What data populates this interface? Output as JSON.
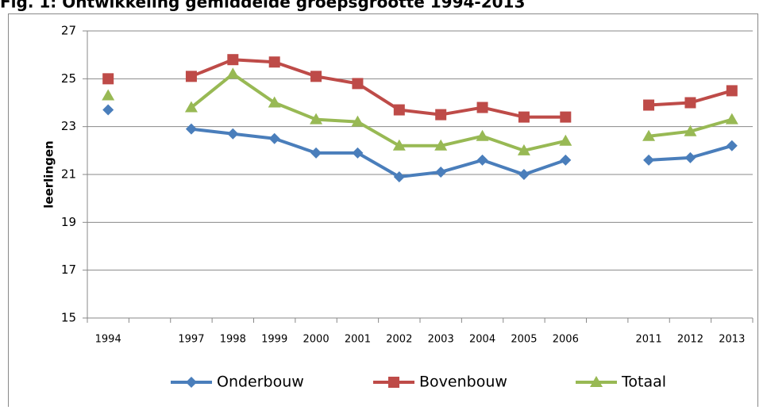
{
  "chart_data": {
    "type": "line",
    "title": "Fig. 1: Ontwikkeling gemiddelde groepsgrootte 1994-2013",
    "y_label": "leerlingen",
    "categories": [
      "1994",
      null,
      "1997",
      "1998",
      "1999",
      "2000",
      "2001",
      "2002",
      "2003",
      "2004",
      "2005",
      "2006",
      null,
      "2011",
      "2012",
      "2013"
    ],
    "series": [
      {
        "name": "Onderbouw",
        "color": "#4a7ebb",
        "marker": "diamond",
        "values": [
          23.7,
          null,
          22.9,
          22.7,
          22.5,
          21.9,
          21.9,
          20.9,
          21.1,
          21.6,
          21.0,
          21.6,
          null,
          21.6,
          21.7,
          22.2
        ]
      },
      {
        "name": "Bovenbouw",
        "color": "#be4b48",
        "marker": "square",
        "values": [
          25.0,
          null,
          25.1,
          25.8,
          25.7,
          25.1,
          24.8,
          23.7,
          23.5,
          23.8,
          23.4,
          23.4,
          null,
          23.9,
          24.0,
          24.5
        ]
      },
      {
        "name": "Totaal",
        "color": "#98b954",
        "marker": "triangle",
        "values": [
          24.3,
          null,
          23.8,
          25.2,
          24.0,
          23.3,
          23.2,
          22.2,
          22.2,
          22.6,
          22.0,
          22.4,
          null,
          22.6,
          22.8,
          23.3
        ]
      }
    ],
    "ylim": [
      15,
      27
    ],
    "yticks": [
      15,
      17,
      19,
      21,
      23,
      25,
      27
    ],
    "grid": true,
    "legend": "bottom"
  }
}
